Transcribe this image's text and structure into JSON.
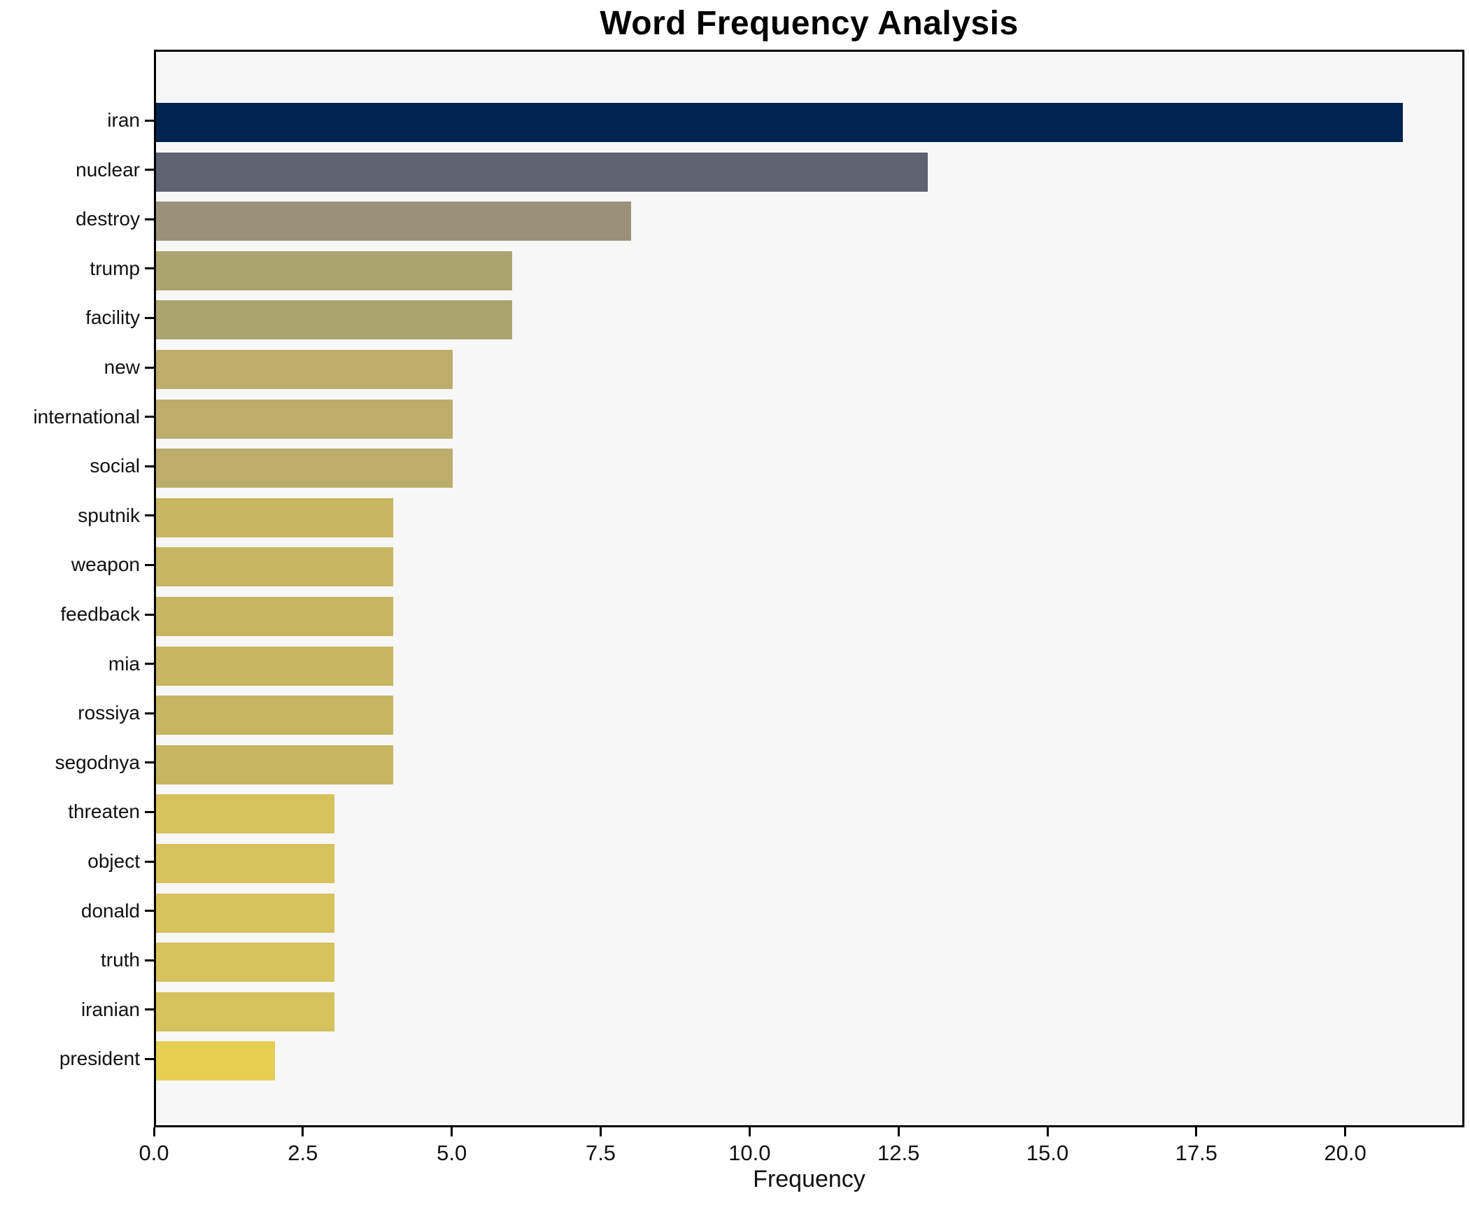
{
  "chart_data": {
    "type": "bar",
    "orientation": "horizontal",
    "title": "Word Frequency Analysis",
    "xlabel": "Frequency",
    "ylabel": "",
    "categories": [
      "iran",
      "nuclear",
      "destroy",
      "trump",
      "facility",
      "new",
      "international",
      "social",
      "sputnik",
      "weapon",
      "feedback",
      "mia",
      "rossiya",
      "segodnya",
      "threaten",
      "object",
      "donald",
      "truth",
      "iranian",
      "president"
    ],
    "values": [
      21,
      13,
      8,
      6,
      6,
      5,
      5,
      5,
      4,
      4,
      4,
      4,
      4,
      4,
      3,
      3,
      3,
      3,
      3,
      2
    ],
    "bar_colors": [
      "#00234f",
      "#5d6371",
      "#99917a",
      "#aba46f",
      "#aba46f",
      "#bcae6a",
      "#bcae6a",
      "#bcae6a",
      "#c7b560",
      "#c7b560",
      "#c7b560",
      "#c7b560",
      "#c7b560",
      "#c7b560",
      "#d6c25c",
      "#d6c25c",
      "#d6c25c",
      "#d6c25c",
      "#d6c25c",
      "#e6ce52"
    ],
    "xlim": [
      0,
      22
    ],
    "xtick_values": [
      0,
      2.5,
      5,
      7.5,
      10,
      12.5,
      15,
      17.5,
      20
    ],
    "xtick_labels": [
      "0.0",
      "2.5",
      "5.0",
      "7.5",
      "10.0",
      "12.5",
      "15.0",
      "17.5",
      "20.0"
    ],
    "grid": false,
    "legend_position": "none",
    "plot_background": "#f7f7f8",
    "figure_background": "#ffffff",
    "spine_color": "#000000",
    "text_color": "#111111"
  }
}
